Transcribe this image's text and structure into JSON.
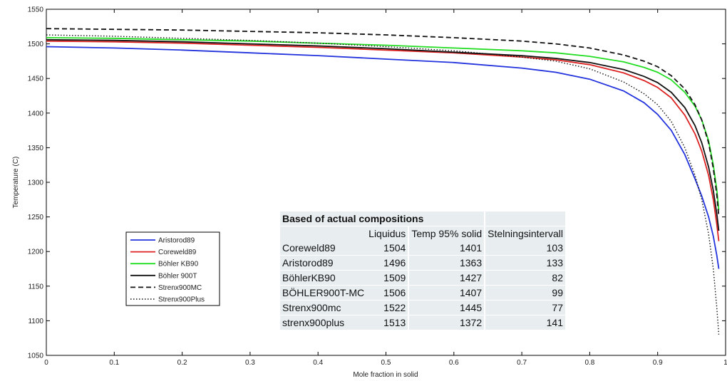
{
  "chart_data": {
    "type": "line",
    "title": "",
    "xlabel": "Mole fraction in solid",
    "ylabel": "Temperature (C)",
    "xlim": [
      0,
      1
    ],
    "ylim": [
      1050,
      1550
    ],
    "xticks": [
      "0",
      "0.1",
      "0.2",
      "0.3",
      "0.4",
      "0.5",
      "0.6",
      "0.7",
      "0.8",
      "0.9",
      "1"
    ],
    "yticks": [
      "1050",
      "1100",
      "1150",
      "1200",
      "1250",
      "1300",
      "1350",
      "1400",
      "1450",
      "1500",
      "1550"
    ],
    "grid": false,
    "legend_position": "left",
    "series": [
      {
        "name": "Aristorod89",
        "color": "#2233dd",
        "dash": "solid",
        "x": [
          0,
          0.1,
          0.2,
          0.3,
          0.4,
          0.5,
          0.6,
          0.7,
          0.75,
          0.8,
          0.85,
          0.88,
          0.9,
          0.92,
          0.94,
          0.955,
          0.965,
          0.975,
          0.982,
          0.987,
          0.99
        ],
        "y": [
          1496,
          1494,
          1491,
          1487,
          1483,
          1478,
          1473,
          1465,
          1459,
          1449,
          1432,
          1415,
          1398,
          1375,
          1340,
          1305,
          1280,
          1250,
          1222,
          1195,
          1175
        ]
      },
      {
        "name": "Coreweld89",
        "color": "#dd2222",
        "dash": "solid",
        "x": [
          0,
          0.1,
          0.2,
          0.3,
          0.4,
          0.5,
          0.6,
          0.7,
          0.75,
          0.8,
          0.85,
          0.88,
          0.9,
          0.92,
          0.94,
          0.955,
          0.965,
          0.975,
          0.982,
          0.987,
          0.99
        ],
        "y": [
          1504,
          1503,
          1501,
          1498,
          1495,
          1491,
          1487,
          1481,
          1477,
          1470,
          1458,
          1447,
          1437,
          1422,
          1397,
          1370,
          1345,
          1310,
          1275,
          1240,
          1215
        ]
      },
      {
        "name": "Böhler KB90",
        "color": "#22dd22",
        "dash": "solid",
        "x": [
          0,
          0.1,
          0.2,
          0.3,
          0.4,
          0.5,
          0.6,
          0.7,
          0.75,
          0.8,
          0.85,
          0.88,
          0.9,
          0.92,
          0.94,
          0.955,
          0.965,
          0.975,
          0.982,
          0.987,
          0.99
        ],
        "y": [
          1509,
          1508,
          1506,
          1504,
          1501,
          1498,
          1494,
          1490,
          1487,
          1482,
          1474,
          1466,
          1459,
          1448,
          1430,
          1410,
          1390,
          1360,
          1325,
          1290,
          1260
        ]
      },
      {
        "name": "Böhler 900T",
        "color": "#111111",
        "dash": "solid",
        "x": [
          0,
          0.1,
          0.2,
          0.3,
          0.4,
          0.5,
          0.6,
          0.7,
          0.75,
          0.8,
          0.85,
          0.88,
          0.9,
          0.92,
          0.94,
          0.955,
          0.965,
          0.975,
          0.982,
          0.987,
          0.99
        ],
        "y": [
          1506,
          1505,
          1503,
          1500,
          1497,
          1493,
          1488,
          1483,
          1479,
          1473,
          1463,
          1453,
          1444,
          1430,
          1408,
          1382,
          1357,
          1322,
          1288,
          1255,
          1230
        ]
      },
      {
        "name": "Strenx900MC",
        "color": "#111111",
        "dash": "dashed",
        "x": [
          0,
          0.1,
          0.2,
          0.3,
          0.4,
          0.5,
          0.6,
          0.7,
          0.75,
          0.8,
          0.85,
          0.88,
          0.9,
          0.92,
          0.94,
          0.955,
          0.965,
          0.975,
          0.982,
          0.987,
          0.99
        ],
        "y": [
          1522,
          1521,
          1520,
          1518,
          1516,
          1513,
          1509,
          1504,
          1500,
          1494,
          1484,
          1475,
          1467,
          1454,
          1435,
          1412,
          1390,
          1357,
          1320,
          1283,
          1250
        ]
      },
      {
        "name": "Strenx900Plus",
        "color": "#111111",
        "dash": "dotted",
        "x": [
          0,
          0.1,
          0.2,
          0.3,
          0.4,
          0.5,
          0.6,
          0.7,
          0.75,
          0.8,
          0.85,
          0.88,
          0.9,
          0.92,
          0.94,
          0.955,
          0.965,
          0.975,
          0.982,
          0.987,
          0.99
        ],
        "y": [
          1513,
          1511,
          1508,
          1505,
          1501,
          1496,
          1490,
          1481,
          1475,
          1464,
          1445,
          1428,
          1412,
          1388,
          1350,
          1310,
          1275,
          1225,
          1175,
          1120,
          1080
        ]
      }
    ],
    "table": {
      "caption": "Based of actual compositions",
      "headers": [
        "",
        "Liquidus",
        "Temp 95% solid",
        "Stelningsintervall"
      ],
      "rows": [
        [
          "Coreweld89",
          "1504",
          "1401",
          "103"
        ],
        [
          "Aristorod89",
          "1496",
          "1363",
          "133"
        ],
        [
          "BöhlerKB90",
          "1509",
          "1427",
          "82"
        ],
        [
          "BÖHLER900T-MC",
          "1506",
          "1407",
          "99"
        ],
        [
          "Strenx900mc",
          "1522",
          "1445",
          "77"
        ],
        [
          "strenx900plus",
          "1513",
          "1372",
          "141"
        ]
      ]
    }
  }
}
